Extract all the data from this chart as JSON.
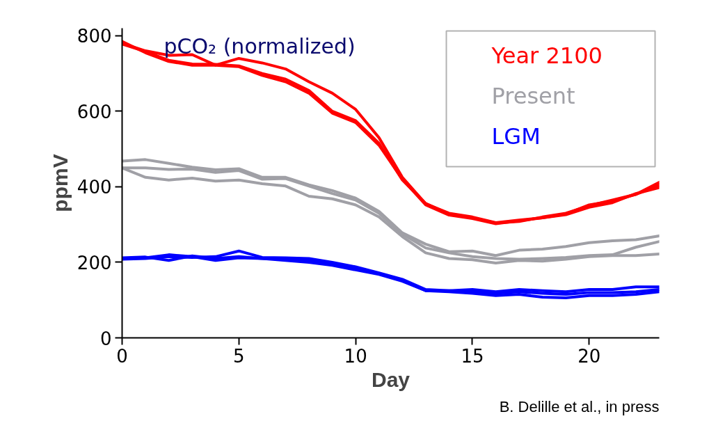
{
  "chart_data": {
    "type": "line",
    "title": "pCO₂ (normalized)",
    "xlabel": "Day",
    "ylabel": "ppmV",
    "annotations": [
      "B. Delille et al., in press"
    ],
    "x": [
      0,
      1,
      2,
      3,
      4,
      5,
      6,
      7,
      8,
      9,
      10,
      11,
      12,
      13,
      14,
      15,
      16,
      17,
      18,
      19,
      20,
      21,
      22,
      23
    ],
    "xlim": [
      0,
      23
    ],
    "xticks": [
      0,
      5,
      10,
      15,
      20
    ],
    "ylim": [
      0,
      820
    ],
    "yticks": [
      0,
      200,
      400,
      600,
      800
    ],
    "grid": false,
    "legend": "top right",
    "line_style": "solid",
    "marker": "none",
    "series": [
      {
        "name": "Year 2100",
        "color": "#ff0000",
        "values": [
          780,
          760,
          748,
          750,
          722,
          740,
          728,
          712,
          678,
          648,
          605,
          530,
          425,
          355,
          330,
          320,
          305,
          312,
          318,
          328,
          352,
          362,
          380,
          412
        ]
      },
      {
        "color": "#ff0000",
        "values": [
          785,
          755,
          732,
          722,
          722,
          718,
          695,
          678,
          648,
          595,
          570,
          510,
          420,
          352,
          325,
          316,
          302,
          310,
          318,
          326,
          346,
          358,
          382,
          398
        ]
      },
      {
        "color": "#ff0000",
        "values": [
          778,
          758,
          735,
          725,
          724,
          720,
          700,
          685,
          655,
          600,
          575,
          515,
          418,
          356,
          328,
          318,
          304,
          308,
          320,
          330,
          350,
          365,
          380,
          405
        ]
      },
      {
        "name": "Present",
        "color": "#a0a0a6",
        "values": [
          468,
          472,
          462,
          452,
          445,
          448,
          425,
          425,
          405,
          390,
          370,
          335,
          278,
          248,
          228,
          230,
          218,
          232,
          235,
          242,
          252,
          257,
          260,
          270
        ]
      },
      {
        "color": "#a0a0a6",
        "values": [
          450,
          450,
          446,
          447,
          438,
          443,
          420,
          422,
          402,
          382,
          365,
          330,
          275,
          238,
          225,
          215,
          210,
          208,
          210,
          213,
          218,
          220,
          240,
          255
        ]
      },
      {
        "color": "#a0a0a6",
        "values": [
          450,
          425,
          418,
          423,
          415,
          418,
          408,
          402,
          375,
          368,
          352,
          320,
          268,
          225,
          210,
          207,
          198,
          205,
          203,
          208,
          215,
          218,
          218,
          222
        ]
      },
      {
        "name": "LGM",
        "color": "#0000ff",
        "values": [
          208,
          210,
          215,
          213,
          215,
          230,
          213,
          212,
          210,
          200,
          188,
          172,
          155,
          128,
          125,
          128,
          122,
          128,
          125,
          122,
          128,
          128,
          135,
          135
        ]
      },
      {
        "color": "#0000ff",
        "values": [
          210,
          212,
          220,
          215,
          205,
          212,
          210,
          208,
          205,
          195,
          182,
          170,
          152,
          125,
          125,
          122,
          118,
          122,
          118,
          115,
          120,
          120,
          122,
          128
        ]
      },
      {
        "color": "#0000ff",
        "values": [
          212,
          214,
          205,
          217,
          210,
          215,
          210,
          205,
          200,
          192,
          180,
          168,
          150,
          125,
          122,
          118,
          112,
          115,
          108,
          106,
          112,
          112,
          115,
          122
        ]
      }
    ]
  }
}
